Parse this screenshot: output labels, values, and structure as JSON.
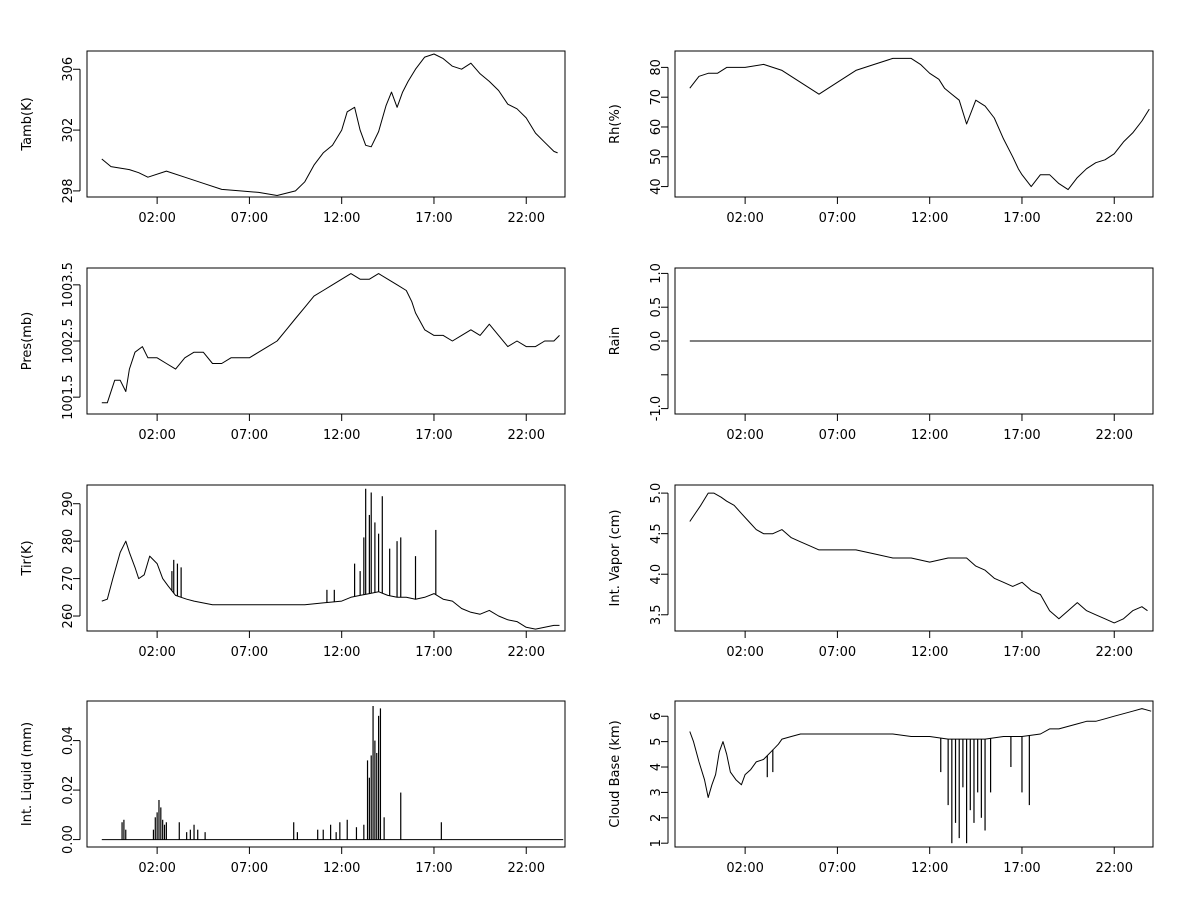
{
  "figure": {
    "layout": "4 rows x 2 columns",
    "background": "#ffffff",
    "line_color": "#000000"
  },
  "chart_data": [
    {
      "type": "line",
      "ylabel": "Tamb(K)",
      "xlabel": "",
      "x_ticks": [
        "02:00",
        "07:00",
        "12:00",
        "17:00",
        "22:00"
      ],
      "xlim": [
        -1.8,
        24.1
      ],
      "ylim": [
        297.6,
        307.2
      ],
      "y_ticks": [
        {
          "value": 298,
          "label": "298"
        },
        {
          "value": 302,
          "label": "302"
        },
        {
          "value": 306,
          "label": "306"
        }
      ],
      "series": [
        {
          "x": [
            -1.0,
            -0.5,
            0.0,
            0.5,
            1.0,
            1.5,
            2.5,
            3.5,
            4.5,
            5.5,
            6.5,
            7.5,
            8.5,
            9.5,
            10.0,
            10.5,
            11.0,
            11.5,
            12.0,
            12.3,
            12.7,
            13.0,
            13.3,
            13.6,
            14.0,
            14.4,
            14.7,
            15.0,
            15.3,
            15.6,
            16.0,
            16.5,
            17.0,
            17.5,
            18.0,
            18.5,
            19.0,
            19.5,
            20.0,
            20.5,
            21.0,
            21.5,
            22.0,
            22.5,
            23.0,
            23.5,
            23.7
          ],
          "y": [
            300.1,
            299.6,
            299.5,
            299.4,
            299.2,
            298.9,
            299.3,
            298.9,
            298.5,
            298.1,
            298.0,
            297.9,
            297.7,
            298.0,
            298.6,
            299.7,
            300.5,
            301.0,
            302.0,
            303.2,
            303.5,
            302.0,
            301.0,
            300.9,
            301.9,
            303.6,
            304.5,
            303.5,
            304.5,
            305.2,
            306.0,
            306.8,
            307.0,
            306.7,
            306.2,
            306.0,
            306.4,
            305.7,
            305.2,
            304.6,
            303.7,
            303.4,
            302.8,
            301.8,
            301.2,
            300.6,
            300.5
          ]
        }
      ]
    },
    {
      "type": "line",
      "ylabel": "Rh(%)",
      "xlabel": "",
      "x_ticks": [
        "02:00",
        "07:00",
        "12:00",
        "17:00",
        "22:00"
      ],
      "xlim": [
        -1.8,
        24.1
      ],
      "ylim": [
        36.5,
        85.5
      ],
      "y_ticks": [
        {
          "value": 40,
          "label": "40"
        },
        {
          "value": 50,
          "label": "50"
        },
        {
          "value": 60,
          "label": "60"
        },
        {
          "value": 70,
          "label": "70"
        },
        {
          "value": 80,
          "label": "80"
        }
      ],
      "series": [
        {
          "x": [
            -1.0,
            -0.5,
            0.0,
            0.5,
            1.0,
            1.5,
            2.0,
            3.0,
            4.0,
            5.0,
            6.0,
            7.0,
            8.0,
            9.0,
            10.0,
            10.5,
            11.0,
            11.5,
            12.0,
            12.5,
            12.8,
            13.2,
            13.6,
            14.0,
            14.5,
            15.0,
            15.5,
            16.0,
            16.5,
            16.8,
            17.0,
            17.5,
            18.0,
            18.5,
            19.0,
            19.5,
            20.0,
            20.5,
            21.0,
            21.5,
            22.0,
            22.5,
            23.0,
            23.5,
            23.9
          ],
          "y": [
            73,
            77,
            78,
            78,
            80,
            80,
            80,
            81,
            79,
            75,
            71,
            75,
            79,
            81,
            83,
            83,
            83,
            81,
            78,
            76,
            73,
            71,
            69,
            61,
            69,
            67,
            63,
            56,
            50,
            46,
            44,
            40,
            44,
            44,
            41,
            39,
            43,
            46,
            48,
            49,
            51,
            55,
            58,
            62,
            66
          ]
        }
      ]
    },
    {
      "type": "line",
      "ylabel": "Pres(mb)",
      "xlabel": "",
      "x_ticks": [
        "02:00",
        "07:00",
        "12:00",
        "17:00",
        "22:00"
      ],
      "xlim": [
        -1.8,
        24.1
      ],
      "ylim": [
        1001.2,
        1003.8
      ],
      "y_ticks": [
        {
          "value": 1001.5,
          "label": "1001.5"
        },
        {
          "value": 1002.5,
          "label": "1002.5"
        },
        {
          "value": 1003.5,
          "label": "1003.5"
        }
      ],
      "series": [
        {
          "x": [
            -1.0,
            -0.7,
            -0.3,
            0.0,
            0.3,
            0.5,
            0.8,
            1.2,
            1.5,
            2.0,
            2.5,
            3.0,
            3.5,
            4.0,
            4.5,
            5.0,
            5.5,
            6.0,
            6.5,
            7.0,
            7.5,
            8.0,
            8.5,
            9.0,
            9.5,
            10.0,
            10.5,
            11.0,
            11.5,
            12.0,
            12.5,
            13.0,
            13.5,
            14.0,
            14.5,
            15.0,
            15.5,
            15.8,
            16.0,
            16.5,
            17.0,
            17.5,
            18.0,
            18.5,
            19.0,
            19.5,
            20.0,
            20.5,
            21.0,
            21.5,
            22.0,
            22.5,
            23.0,
            23.5,
            23.8
          ],
          "y": [
            1001.4,
            1001.4,
            1001.8,
            1001.8,
            1001.6,
            1002.0,
            1002.3,
            1002.4,
            1002.2,
            1002.2,
            1002.1,
            1002.0,
            1002.2,
            1002.3,
            1002.3,
            1002.1,
            1002.1,
            1002.2,
            1002.2,
            1002.2,
            1002.3,
            1002.4,
            1002.5,
            1002.7,
            1002.9,
            1003.1,
            1003.3,
            1003.4,
            1003.5,
            1003.6,
            1003.7,
            1003.6,
            1003.6,
            1003.7,
            1003.6,
            1003.5,
            1003.4,
            1003.2,
            1003.0,
            1002.7,
            1002.6,
            1002.6,
            1002.5,
            1002.6,
            1002.7,
            1002.6,
            1002.8,
            1002.6,
            1002.4,
            1002.5,
            1002.4,
            1002.4,
            1002.5,
            1002.5,
            1002.6
          ]
        }
      ]
    },
    {
      "type": "line",
      "ylabel": "Rain",
      "xlabel": "",
      "x_ticks": [
        "02:00",
        "07:00",
        "12:00",
        "17:00",
        "22:00"
      ],
      "xlim": [
        -1.8,
        24.1
      ],
      "ylim": [
        -1.08,
        1.08
      ],
      "y_ticks": [
        {
          "value": -1.0,
          "label": "-1.0"
        },
        {
          "value": -0.5,
          "label": ""
        },
        {
          "value": 0.0,
          "label": "0.0"
        },
        {
          "value": 0.5,
          "label": "0.5"
        },
        {
          "value": 1.0,
          "label": "1.0"
        }
      ],
      "series": [
        {
          "x": [
            -1.0,
            24.0
          ],
          "y": [
            0.0,
            0.0
          ]
        }
      ]
    },
    {
      "type": "line",
      "ylabel": "Tir(K)",
      "xlabel": "",
      "x_ticks": [
        "02:00",
        "07:00",
        "12:00",
        "17:00",
        "22:00"
      ],
      "xlim": [
        -1.8,
        24.1
      ],
      "ylim": [
        256,
        295
      ],
      "y_ticks": [
        {
          "value": 260,
          "label": "260"
        },
        {
          "value": 270,
          "label": "270"
        },
        {
          "value": 280,
          "label": "280"
        },
        {
          "value": 290,
          "label": "290"
        }
      ],
      "series": [
        {
          "x": [
            -1.0,
            -0.7,
            -0.4,
            0.0,
            0.3,
            0.5,
            0.8,
            1.0,
            1.3,
            1.6,
            2.0,
            2.3,
            2.6,
            3.0,
            3.3,
            3.6,
            4.0,
            5.0,
            6.0,
            7.0,
            8.0,
            9.0,
            10.0,
            11.0,
            12.0,
            12.5,
            13.0,
            13.5,
            14.0,
            14.5,
            15.0,
            15.5,
            16.0,
            16.5,
            17.0,
            17.5,
            18.0,
            18.5,
            19.0,
            19.5,
            20.0,
            20.5,
            21.0,
            21.5,
            22.0,
            22.5,
            23.0,
            23.5,
            23.8
          ],
          "y": [
            264,
            264.5,
            270,
            277,
            280,
            277,
            273,
            270,
            271,
            276,
            274,
            270,
            268,
            265.5,
            265,
            264.5,
            264,
            263,
            263,
            263,
            263,
            263,
            263,
            263.5,
            264,
            265,
            265.5,
            266,
            266.5,
            265.5,
            265,
            265,
            264.5,
            265,
            266,
            264.5,
            264,
            262,
            261,
            260.5,
            261.5,
            260,
            259,
            258.5,
            257,
            256.5,
            257,
            257.5,
            257.5
          ]
        }
      ],
      "spikes": {
        "x": [
          2.8,
          2.9,
          3.1,
          3.3,
          11.2,
          11.6,
          12.7,
          13.0,
          13.2,
          13.3,
          13.5,
          13.6,
          13.8,
          14.0,
          14.2,
          14.6,
          15.0,
          15.2,
          16.0,
          17.1
        ],
        "y": [
          272,
          275,
          274,
          273,
          267,
          267,
          274,
          272,
          281,
          294,
          287,
          293,
          285,
          282,
          292,
          278,
          280,
          281,
          276,
          283
        ]
      }
    },
    {
      "type": "line",
      "ylabel": "Int. Vapor (cm)",
      "xlabel": "",
      "x_ticks": [
        "02:00",
        "07:00",
        "12:00",
        "17:00",
        "22:00"
      ],
      "xlim": [
        -1.8,
        24.1
      ],
      "ylim": [
        3.3,
        5.1
      ],
      "y_ticks": [
        {
          "value": 3.5,
          "label": "3.5"
        },
        {
          "value": 4.0,
          "label": "4.0"
        },
        {
          "value": 4.5,
          "label": "4.5"
        },
        {
          "value": 5.0,
          "label": "5.0"
        }
      ],
      "series": [
        {
          "x": [
            -1.0,
            -0.7,
            -0.4,
            0.0,
            0.3,
            0.7,
            1.0,
            1.4,
            1.8,
            2.2,
            2.6,
            3.0,
            3.5,
            4.0,
            4.5,
            5.0,
            5.5,
            6.0,
            7.0,
            8.0,
            9.0,
            10.0,
            11.0,
            12.0,
            13.0,
            14.0,
            14.5,
            15.0,
            15.5,
            16.0,
            16.5,
            17.0,
            17.5,
            18.0,
            18.5,
            19.0,
            19.5,
            20.0,
            20.5,
            21.0,
            21.5,
            22.0,
            22.5,
            23.0,
            23.5,
            23.8
          ],
          "y": [
            4.65,
            4.75,
            4.85,
            5.0,
            5.0,
            4.95,
            4.9,
            4.85,
            4.75,
            4.65,
            4.55,
            4.5,
            4.5,
            4.55,
            4.45,
            4.4,
            4.35,
            4.3,
            4.3,
            4.3,
            4.25,
            4.2,
            4.2,
            4.15,
            4.2,
            4.2,
            4.1,
            4.05,
            3.95,
            3.9,
            3.85,
            3.9,
            3.8,
            3.75,
            3.55,
            3.45,
            3.55,
            3.65,
            3.55,
            3.5,
            3.45,
            3.4,
            3.45,
            3.55,
            3.6,
            3.55
          ]
        }
      ]
    },
    {
      "type": "line",
      "ylabel": "Int. Liquid (mm)",
      "xlabel": "",
      "x_ticks": [
        "02:00",
        "07:00",
        "12:00",
        "17:00",
        "22:00"
      ],
      "xlim": [
        -1.8,
        24.1
      ],
      "ylim": [
        -0.003,
        0.056
      ],
      "y_ticks": [
        {
          "value": 0.0,
          "label": "0.00"
        },
        {
          "value": 0.02,
          "label": "0.02"
        },
        {
          "value": 0.04,
          "label": "0.04"
        }
      ],
      "series": [
        {
          "x": [
            -1.0,
            24.0
          ],
          "y": [
            0.0,
            0.0
          ]
        }
      ],
      "spikes": {
        "x": [
          0.1,
          0.2,
          0.3,
          1.8,
          1.9,
          2.0,
          2.1,
          2.2,
          2.3,
          2.4,
          2.5,
          3.2,
          3.6,
          3.8,
          4.0,
          4.2,
          4.6,
          9.4,
          9.6,
          10.7,
          11.0,
          11.4,
          11.7,
          11.9,
          12.3,
          12.8,
          13.2,
          13.4,
          13.5,
          13.6,
          13.7,
          13.8,
          13.9,
          14.0,
          14.1,
          14.3,
          15.2,
          17.4
        ],
        "y": [
          0.007,
          0.008,
          0.004,
          0.004,
          0.009,
          0.011,
          0.016,
          0.013,
          0.008,
          0.006,
          0.007,
          0.007,
          0.003,
          0.004,
          0.006,
          0.004,
          0.003,
          0.007,
          0.003,
          0.004,
          0.004,
          0.006,
          0.003,
          0.007,
          0.008,
          0.005,
          0.006,
          0.032,
          0.025,
          0.034,
          0.054,
          0.04,
          0.035,
          0.05,
          0.053,
          0.009,
          0.019,
          0.007
        ]
      }
    },
    {
      "type": "line",
      "ylabel": "Cloud Base (km)",
      "xlabel": "",
      "x_ticks": [
        "02:00",
        "07:00",
        "12:00",
        "17:00",
        "22:00"
      ],
      "xlim": [
        -1.8,
        24.1
      ],
      "ylim": [
        0.85,
        6.6
      ],
      "y_ticks": [
        {
          "value": 1,
          "label": "1"
        },
        {
          "value": 2,
          "label": "2"
        },
        {
          "value": 3,
          "label": "3"
        },
        {
          "value": 4,
          "label": "4"
        },
        {
          "value": 5,
          "label": "5"
        },
        {
          "value": 6,
          "label": "6"
        }
      ],
      "series": [
        {
          "x": [
            -1.0,
            -0.8,
            -0.5,
            -0.2,
            0.0,
            0.2,
            0.4,
            0.6,
            0.8,
            1.0,
            1.2,
            1.5,
            1.8,
            2.0,
            2.3,
            2.6,
            3.0,
            3.4,
            3.8,
            4.0,
            4.5,
            5.0,
            6.0,
            7.0,
            8.0,
            9.0,
            10.0,
            11.0,
            12.0,
            13.0,
            14.0,
            15.0,
            16.0,
            17.0,
            18.0,
            18.5,
            19.0,
            19.5,
            20.0,
            20.5,
            21.0,
            21.5,
            22.0,
            22.5,
            23.0,
            23.5,
            24.0
          ],
          "y": [
            5.4,
            5.0,
            4.2,
            3.5,
            2.8,
            3.3,
            3.7,
            4.6,
            5.0,
            4.5,
            3.8,
            3.5,
            3.3,
            3.7,
            3.9,
            4.2,
            4.3,
            4.6,
            4.9,
            5.1,
            5.2,
            5.3,
            5.3,
            5.3,
            5.3,
            5.3,
            5.3,
            5.2,
            5.2,
            5.1,
            5.1,
            5.1,
            5.2,
            5.2,
            5.3,
            5.5,
            5.5,
            5.6,
            5.7,
            5.8,
            5.8,
            5.9,
            6.0,
            6.1,
            6.2,
            6.3,
            6.2
          ]
        }
      ],
      "spikes": {
        "x": [
          3.2,
          3.5,
          12.6,
          13.0,
          13.2,
          13.4,
          13.6,
          13.8,
          14.0,
          14.2,
          14.4,
          14.6,
          14.8,
          15.0,
          15.3,
          16.4,
          17.0,
          17.4
        ],
        "y": [
          3.6,
          3.8,
          3.8,
          2.5,
          1.0,
          1.8,
          1.2,
          3.2,
          1.0,
          2.3,
          1.8,
          3.0,
          2.0,
          1.5,
          3.0,
          4.0,
          3.0,
          2.5
        ]
      }
    }
  ]
}
